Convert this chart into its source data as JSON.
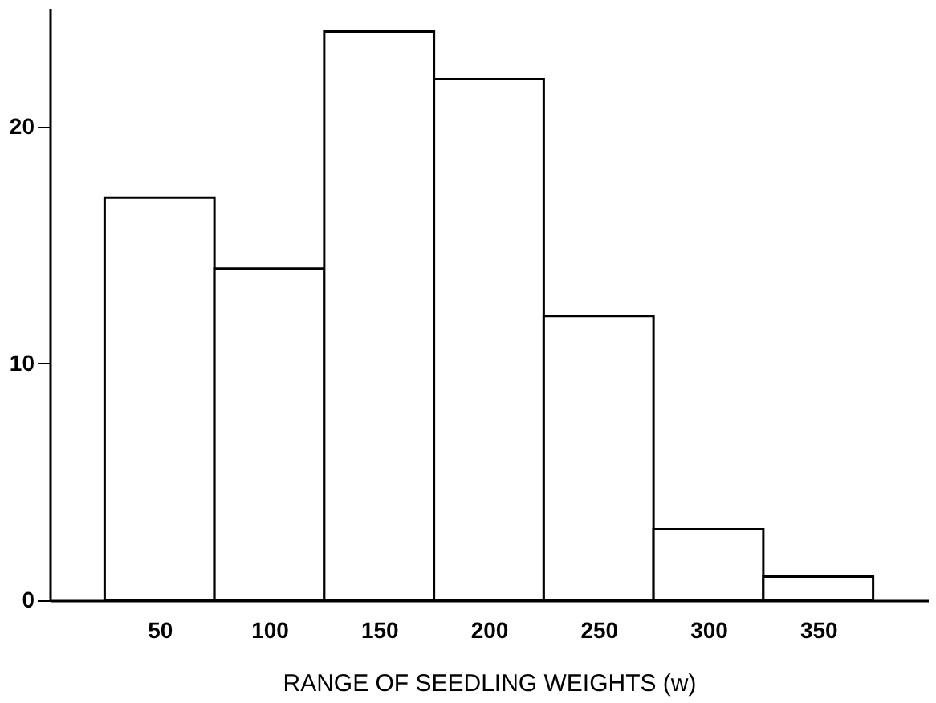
{
  "chart_data": {
    "type": "histogram",
    "xlabel": "RANGE OF SEEDLING WEIGHTS (w)",
    "bins": [
      25,
      75,
      125,
      175,
      225,
      275,
      325,
      375
    ],
    "values": [
      17,
      14,
      24,
      22,
      12,
      3,
      1
    ],
    "color": "#ffffff",
    "xlim": [
      0,
      400
    ],
    "xticks": [
      50,
      100,
      150,
      200,
      250,
      300,
      350
    ],
    "ylim": [
      0,
      25
    ],
    "yticks": [
      0,
      10,
      20
    ],
    "grid": false
  }
}
